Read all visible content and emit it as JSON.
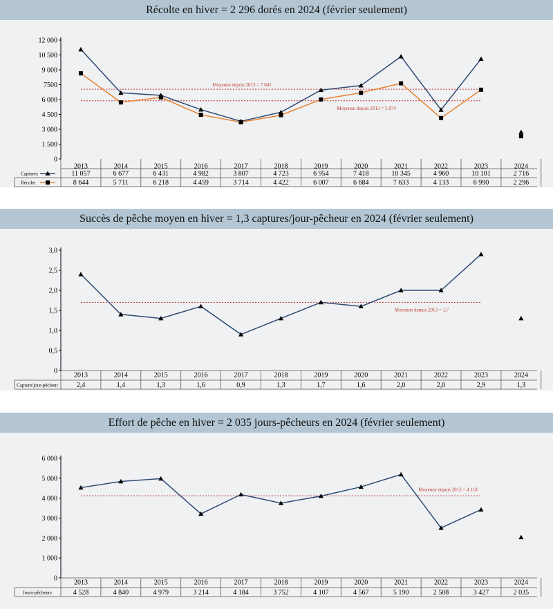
{
  "colors": {
    "header_bg": "#b4c6d3",
    "section_bg": "#eff1f3",
    "captures": "#2f4a72",
    "harvest": "#e8822e",
    "average": "#cc2a2a"
  },
  "chart_data": [
    {
      "type": "line",
      "title": "Récolte en hiver = 2 296 dorés en 2024 (février seulement)",
      "categories": [
        "2013",
        "2014",
        "2015",
        "2016",
        "2017",
        "2018",
        "2019",
        "2020",
        "2021",
        "2022",
        "2023",
        "2024"
      ],
      "ylim": [
        0,
        12000
      ],
      "yticks": [
        0,
        1500,
        3000,
        4500,
        6000,
        7500,
        9000,
        10500,
        12000
      ],
      "ytick_labels": [
        "0",
        "1 500",
        "3 000",
        "4 500",
        "6 000",
        "7500",
        "9 000",
        "10 500",
        "12 000"
      ],
      "series": [
        {
          "name": "Captures",
          "marker": "triangle",
          "color": "#2f4a72",
          "values": [
            11057,
            6677,
            6431,
            4982,
            3807,
            4723,
            6954,
            7418,
            10345,
            4960,
            10101,
            2716
          ],
          "labels": [
            "11 057",
            "6 677",
            "6 431",
            "4 982",
            "3 807",
            "4 723",
            "6 954",
            "7 418",
            "10 345",
            "4 960",
            "10 101",
            "2 716"
          ]
        },
        {
          "name": "Récolte",
          "marker": "square",
          "color": "#e8822e",
          "values": [
            8644,
            5711,
            6218,
            4459,
            3714,
            4422,
            6007,
            6684,
            7633,
            4133,
            6990,
            2296
          ],
          "labels": [
            "8 644",
            "5 711",
            "6 218",
            "4 459",
            "3 714",
            "4 422",
            "6 007",
            "6 684",
            "7 633",
            "4 133",
            "6 990",
            "2 296"
          ]
        }
      ],
      "averages": [
        {
          "value": 7041,
          "label": "Moyenne depuis 2013 = 7 041"
        },
        {
          "value": 5874,
          "label": "Moyenne depuis 2013 = 5 874"
        }
      ]
    },
    {
      "type": "line",
      "title": "Succès de pêche moyen en hiver = 1,3 captures/jour-pêcheur en 2024 (février seulement)",
      "categories": [
        "2013",
        "2014",
        "2015",
        "2016",
        "2017",
        "2018",
        "2019",
        "2020",
        "2021",
        "2022",
        "2023",
        "2024"
      ],
      "ylim": [
        0,
        3.0
      ],
      "yticks": [
        0,
        0.5,
        1.0,
        1.5,
        2.0,
        2.5,
        3.0
      ],
      "ytick_labels": [
        "0",
        "0,5",
        "1,0",
        "1,5",
        "2,0",
        "2,5",
        "3,0"
      ],
      "series": [
        {
          "name": "Capture/jour-pêcheur",
          "marker": "triangle",
          "color": "#2f4a72",
          "values": [
            2.4,
            1.4,
            1.3,
            1.6,
            0.9,
            1.3,
            1.7,
            1.6,
            2.0,
            2.0,
            2.9,
            1.3
          ],
          "labels": [
            "2,4",
            "1,4",
            "1,3",
            "1,6",
            "0,9",
            "1,3",
            "1,7",
            "1,6",
            "2,0",
            "2,0",
            "2,9",
            "1,3"
          ]
        }
      ],
      "averages": [
        {
          "value": 1.7,
          "label": "Moyenne depuis 2013 = 1,7"
        }
      ]
    },
    {
      "type": "line",
      "title": "Effort de pêche en hiver = 2 035 jours-pêcheurs en 2024 (février seulement)",
      "categories": [
        "2013",
        "2014",
        "2015",
        "2016",
        "2017",
        "2018",
        "2019",
        "2020",
        "2021",
        "2022",
        "2023",
        "2024"
      ],
      "ylim": [
        0,
        6000
      ],
      "yticks": [
        0,
        1000,
        2000,
        3000,
        4000,
        5000,
        6000
      ],
      "ytick_labels": [
        "0",
        "1 000",
        "2 000",
        "3 000",
        "4 000",
        "5 000",
        "6 000"
      ],
      "series": [
        {
          "name": "Jours-pêcheurs",
          "marker": "triangle",
          "color": "#2f4a72",
          "values": [
            4528,
            4840,
            4979,
            3214,
            4184,
            3752,
            4107,
            4567,
            5190,
            2508,
            3427,
            2035
          ],
          "labels": [
            "4 528",
            "4 840",
            "4 979",
            "3 214",
            "4 184",
            "3 752",
            "4 107",
            "4 567",
            "5 190",
            "2 508",
            "3 427",
            "2 035"
          ]
        }
      ],
      "averages": [
        {
          "value": 4118,
          "label": "Moyenne depuis 2013 = 4 118"
        }
      ]
    }
  ]
}
